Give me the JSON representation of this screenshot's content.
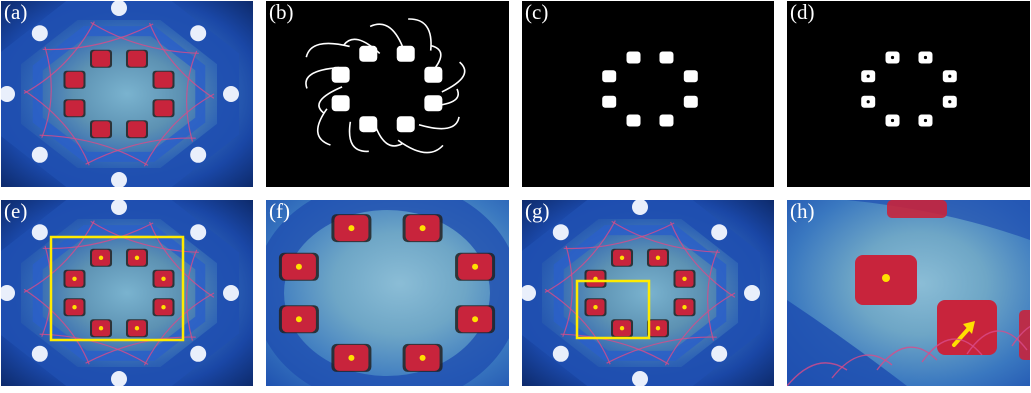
{
  "panels": [
    {
      "id": "a",
      "label": "(a)"
    },
    {
      "id": "b",
      "label": "(b)"
    },
    {
      "id": "c",
      "label": "(c)"
    },
    {
      "id": "d",
      "label": "(d)"
    },
    {
      "id": "e",
      "label": "(e)"
    },
    {
      "id": "f",
      "label": "(f)"
    },
    {
      "id": "g",
      "label": "(g)"
    },
    {
      "id": "h",
      "label": "(h)"
    }
  ],
  "colors": {
    "highlight_box": "#ffeb00",
    "centroid_dot": "#ffe000",
    "coil_red": "#c8243c",
    "tank_blue": "#1f4fb0",
    "led_white": "#f4f8ff",
    "mask_white": "#ffffff",
    "mask_black": "#000000"
  }
}
